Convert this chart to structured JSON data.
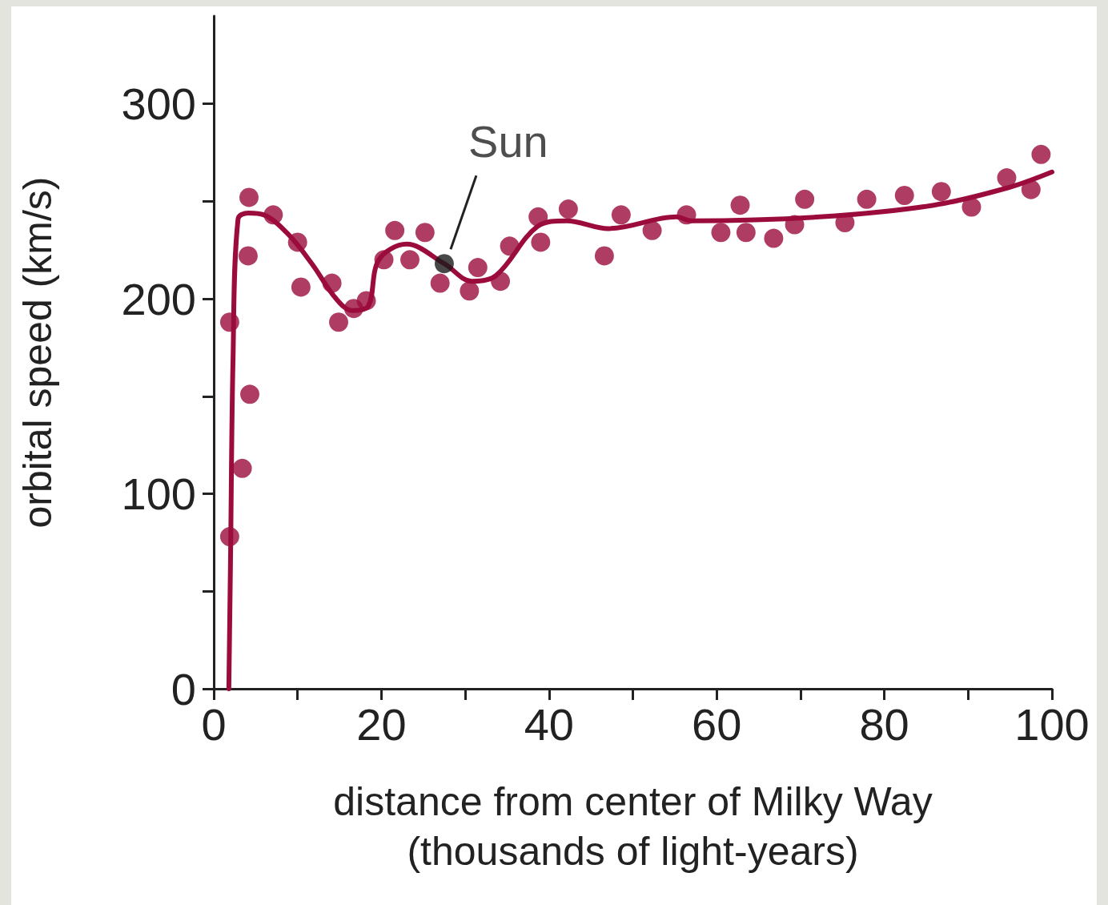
{
  "chart_data": {
    "type": "scatter",
    "xlabel": "distance from center of Milky Way\n(thousands of light-years)",
    "ylabel": "orbital speed (km/s)",
    "xlim": [
      0,
      100
    ],
    "xticks": [
      0,
      {
        "value": 10,
        "label": null
      },
      20,
      {
        "value": 30,
        "label": null
      },
      40,
      {
        "value": 50,
        "label": null
      },
      60,
      {
        "value": 70,
        "label": null
      },
      80,
      {
        "value": 90,
        "label": null
      },
      100
    ],
    "ylim": [
      0,
      345
    ],
    "yticks": [
      0,
      {
        "value": 50,
        "label": null
      },
      100,
      {
        "value": 150,
        "label": null
      },
      200,
      {
        "value": 250,
        "label": null
      },
      300
    ],
    "grid": false,
    "marker": "circle",
    "annotations": [
      {
        "text": "Sun",
        "x": 27.5,
        "y": 218
      }
    ],
    "series": [
      {
        "color": "#9b0c3c",
        "x": [
          1.9,
          1.9,
          3.4,
          4.2,
          4.1,
          4.3,
          7.1,
          10.0,
          10.4,
          14.1,
          14.9,
          16.7,
          18.2,
          20.3,
          21.6,
          23.4,
          25.2,
          27.0,
          30.5,
          31.5,
          34.2,
          35.3,
          38.7,
          39.0,
          42.3,
          46.6,
          48.6,
          52.3,
          56.4,
          60.5,
          62.8,
          63.5,
          66.8,
          69.3,
          70.5,
          75.3,
          77.9,
          82.4,
          86.8,
          90.4,
          94.6,
          97.5,
          98.7
        ],
        "values": [
          78,
          188,
          113,
          252,
          222,
          151,
          243,
          229,
          206,
          208,
          188,
          195,
          199,
          220,
          235,
          220,
          234,
          208,
          204,
          216,
          209,
          227,
          242,
          229,
          246,
          222,
          243,
          235,
          243,
          234,
          248,
          234,
          231,
          238,
          251,
          239,
          251,
          253,
          255,
          247,
          262,
          256,
          274
        ]
      },
      {
        "type": "line",
        "color": "#9b0c3c",
        "line_style": "solid",
        "marker": "none",
        "x": [
          1.8,
          2.0,
          2.3,
          2.9,
          4.1,
          6.0,
          8.9,
          11.7,
          14.6,
          16.5,
          18.4,
          19.7,
          23.0,
          27.5,
          30.8,
          33.7,
          38.6,
          42.1,
          47.1,
          55.2,
          57.0,
          72.3,
          85.9,
          94.8,
          100
        ],
        "values": [
          0,
          66,
          169,
          241,
          244,
          243,
          233,
          218,
          200,
          194,
          196,
          220,
          228,
          218,
          209,
          212,
          237,
          240,
          236,
          242,
          240,
          242,
          248,
          257,
          265
        ]
      },
      {
        "color": "#1a1a1a",
        "x": [
          27.5
        ],
        "values": [
          218
        ]
      }
    ]
  }
}
